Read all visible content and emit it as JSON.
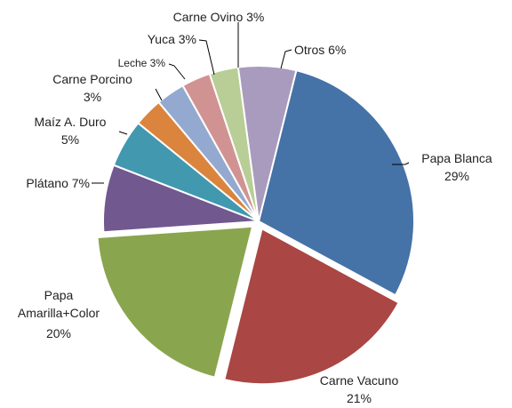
{
  "chart_data": {
    "type": "pie",
    "title": "",
    "legend": "none",
    "slices": [
      {
        "label": "Papa Blanca",
        "value_label": "29%",
        "value": 29,
        "color": "#4572A7"
      },
      {
        "label": "Carne Vacuno",
        "value_label": "21%",
        "value": 21,
        "color": "#AA4643"
      },
      {
        "label": "Papa Amarilla+Color",
        "value_label": "20%",
        "value": 20,
        "color": "#89A54E"
      },
      {
        "label": "Plátano",
        "value_label": "7%",
        "value": 7,
        "color": "#71588F"
      },
      {
        "label": "Maíz A. Duro",
        "value_label": "5%",
        "value": 5,
        "color": "#4198AF"
      },
      {
        "label": "Carne Porcino",
        "value_label": "3%",
        "value": 3,
        "color": "#DB843D"
      },
      {
        "label": "Leche",
        "value_label": "3%",
        "value": 3,
        "color": "#93A9CF"
      },
      {
        "label": "Yuca",
        "value_label": "3%",
        "value": 3,
        "color": "#D19392"
      },
      {
        "label": "Carne Ovino",
        "value_label": "3%",
        "value": 3,
        "color": "#B9CD96"
      },
      {
        "label": "Otros",
        "value_label": "6%",
        "value": 6,
        "color": "#A99BBD"
      }
    ]
  }
}
